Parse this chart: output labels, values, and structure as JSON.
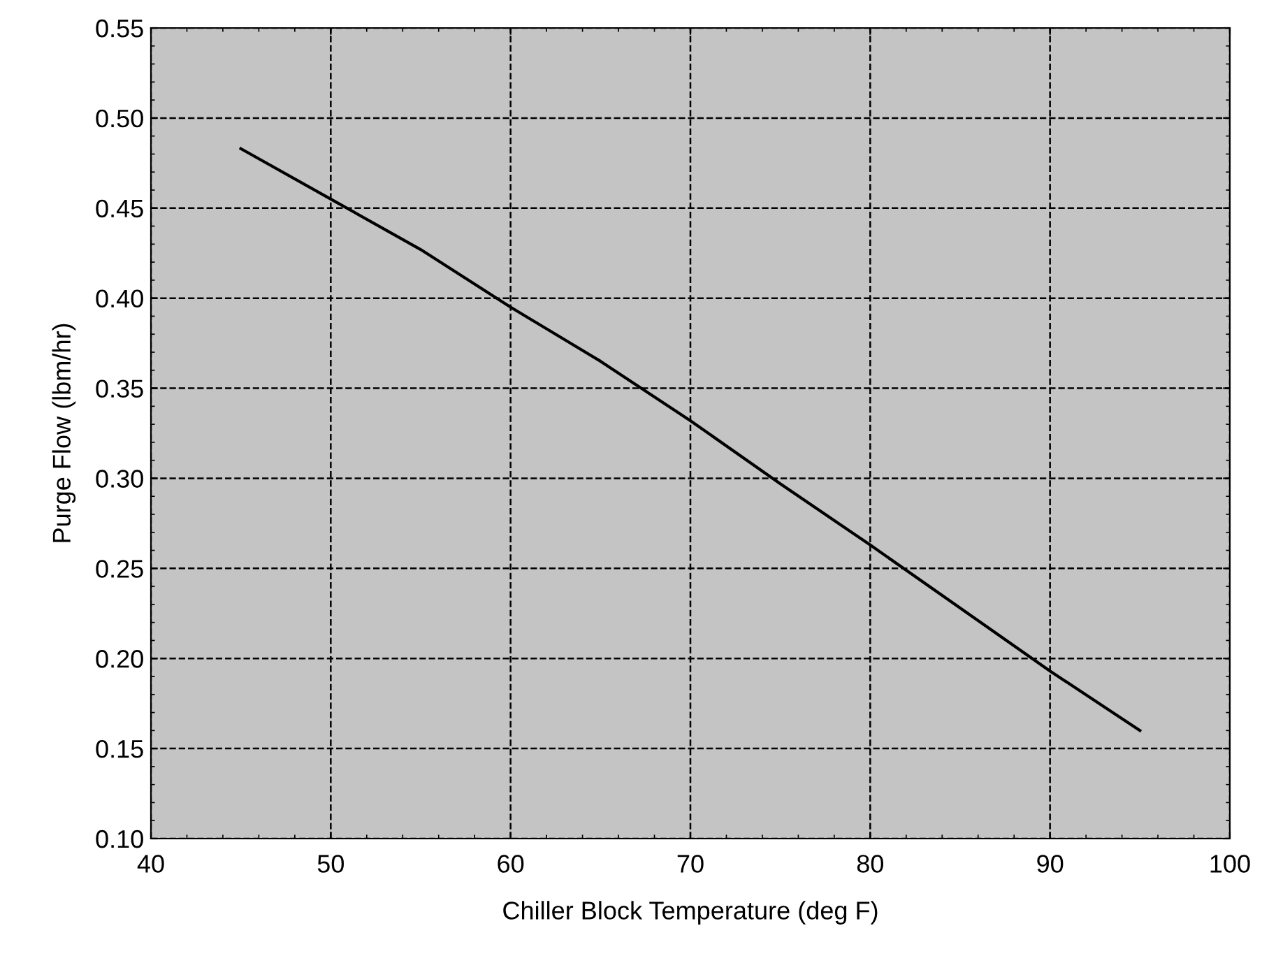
{
  "chart_data": {
    "type": "line",
    "xlabel": "Chiller Block Temperature (deg F)",
    "ylabel": "Purge Flow (lbm/hr)",
    "x": [
      45,
      50,
      55,
      60,
      65,
      70,
      75,
      80,
      85,
      90,
      95
    ],
    "series": [
      {
        "color": "#000000",
        "values": [
          0.483,
          0.455,
          0.427,
          0.395,
          0.365,
          0.332,
          0.297,
          0.263,
          0.228,
          0.193,
          0.16
        ]
      }
    ],
    "xlim": [
      40,
      100
    ],
    "xticks": [
      40,
      50,
      60,
      70,
      80,
      90,
      100
    ],
    "ylim": [
      0.1,
      0.55
    ],
    "yticks": [
      {
        "value": 0.1,
        "label": "0.10"
      },
      {
        "value": 0.15,
        "label": "0.15"
      },
      {
        "value": 0.2,
        "label": "0.20"
      },
      {
        "value": 0.25,
        "label": "0.25"
      },
      {
        "value": 0.3,
        "label": "0.30"
      },
      {
        "value": 0.35,
        "label": "0.35"
      },
      {
        "value": 0.4,
        "label": "0.40"
      },
      {
        "value": 0.45,
        "label": "0.45"
      },
      {
        "value": 0.5,
        "label": "0.50"
      },
      {
        "value": 0.55,
        "label": "0.55"
      }
    ],
    "grid": true,
    "line_style": "solid",
    "marker": "none"
  }
}
